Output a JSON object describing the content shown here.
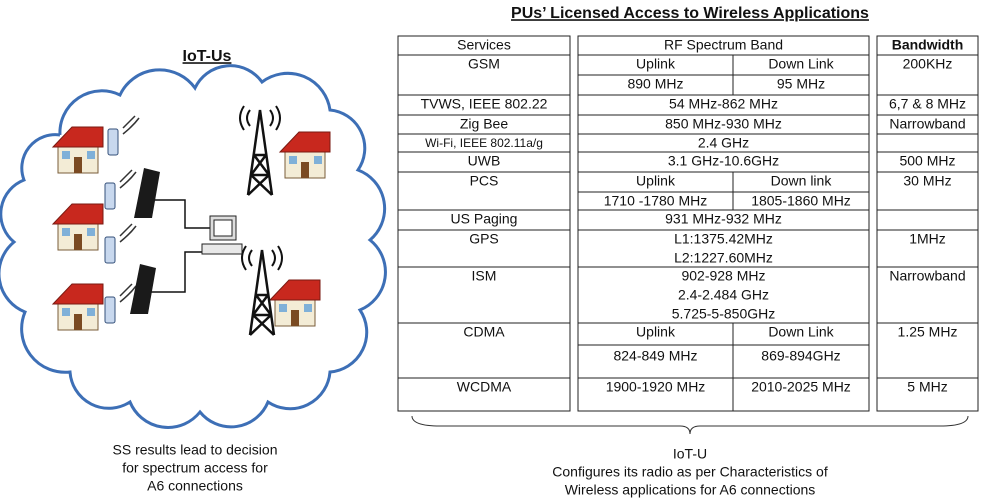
{
  "left": {
    "title": "IoT-Us",
    "caption": [
      "SS results lead to decision",
      "for spectrum access for",
      "A6 connections"
    ]
  },
  "table": {
    "title": "PUs’ Licensed Access to Wireless Applications",
    "header": [
      "Services",
      "RF Spectrum Band",
      "Bandwidth"
    ],
    "rows": [
      {
        "service": "GSM",
        "uplink": [
          "Uplink",
          "890 MHz"
        ],
        "downlink": [
          "Down Link",
          "95 MHz"
        ],
        "bandwidth": "200KHz"
      },
      {
        "service": "TVWS, IEEE 802.22",
        "band": [
          "54 MHz-862 MHz"
        ],
        "bandwidth": "6,7 & 8 MHz"
      },
      {
        "service": "Zig Bee",
        "band": [
          "850 MHz-930 MHz"
        ],
        "bandwidth": "Narrowband"
      },
      {
        "service": "Wi-Fi, IEEE 802.11a/g",
        "band": [
          "2.4 GHz"
        ]
      },
      {
        "service": "UWB",
        "band": [
          "3.1 GHz-10.6GHz"
        ],
        "bandwidth": "500 MHz"
      },
      {
        "service": "PCS",
        "uplink": [
          "Uplink",
          "1710 -1780 MHz"
        ],
        "downlink": [
          "Down link",
          "1805-1860 MHz"
        ],
        "bandwidth": "30 MHz"
      },
      {
        "service": "US Paging",
        "band": [
          "931 MHz-932 MHz"
        ]
      },
      {
        "service": "GPS",
        "band": [
          "L1:1375.42MHz",
          "L2:1227.60MHz"
        ],
        "bandwidth": "1MHz"
      },
      {
        "service": "ISM",
        "band": [
          "902-928 MHz",
          "2.4-2.484 GHz",
          "5.725-5-850GHz"
        ],
        "bandwidth": "Narrowband"
      },
      {
        "service": "CDMA",
        "uplink": [
          "Uplink",
          "824-849 MHz"
        ],
        "downlink": [
          "Down Link",
          "869-894GHz"
        ],
        "bandwidth": "1.25 MHz"
      },
      {
        "service": "WCDMA",
        "uplink": [
          "1900-1920 MHz"
        ],
        "downlink": [
          "2010-2025 MHz"
        ],
        "bandwidth": "5 MHz"
      }
    ]
  },
  "bottom": {
    "caption": [
      "IoT-U",
      "Configures its radio as per Characteristics of",
      "Wireless applications for A6 connections"
    ]
  }
}
